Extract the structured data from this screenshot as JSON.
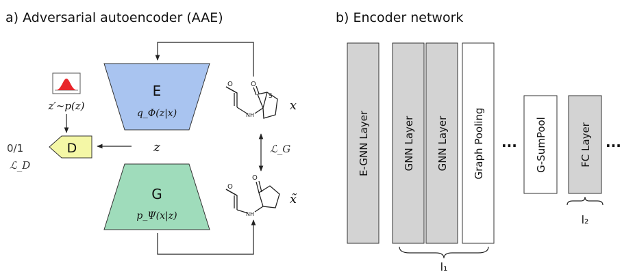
{
  "panel_a": {
    "title": "a) Adversarial autoencoder (AAE)",
    "encoder": {
      "label": "E",
      "formula": "q_Φ(z|x)",
      "color": "#a9c4f0"
    },
    "decoder": {
      "label": "G",
      "formula": "p_Ψ(x|z)",
      "color": "#9fdcbb"
    },
    "discriminator": {
      "label": "D",
      "output": "0/1",
      "loss": "ℒ_D",
      "color": "#f4f7a6"
    },
    "prior": {
      "label": "z′∼p(z)",
      "curve_color": "#e8262b"
    },
    "latent": "z",
    "input": "x",
    "reconstruction": "x̃",
    "reconstruction_loss": "ℒ_G",
    "molecule_atoms": {
      "sulfur": "S",
      "oxygen": "O",
      "amine": "NH"
    }
  },
  "panel_b": {
    "title": "b) Encoder network",
    "layers": [
      {
        "label": "E-GNN Layer",
        "fill": "#d3d3d3"
      },
      {
        "label": "GNN Layer",
        "fill": "#d3d3d3"
      },
      {
        "label": "GNN Layer",
        "fill": "#d3d3d3"
      },
      {
        "label": "Graph Pooling",
        "fill": "#ffffff"
      },
      {
        "label": "G-SumPool",
        "fill": "#ffffff"
      },
      {
        "label": "FC Layer",
        "fill": "#d3d3d3"
      }
    ],
    "ellipsis": [
      "...",
      "..."
    ],
    "braces": [
      "l₁",
      "l₂"
    ]
  }
}
